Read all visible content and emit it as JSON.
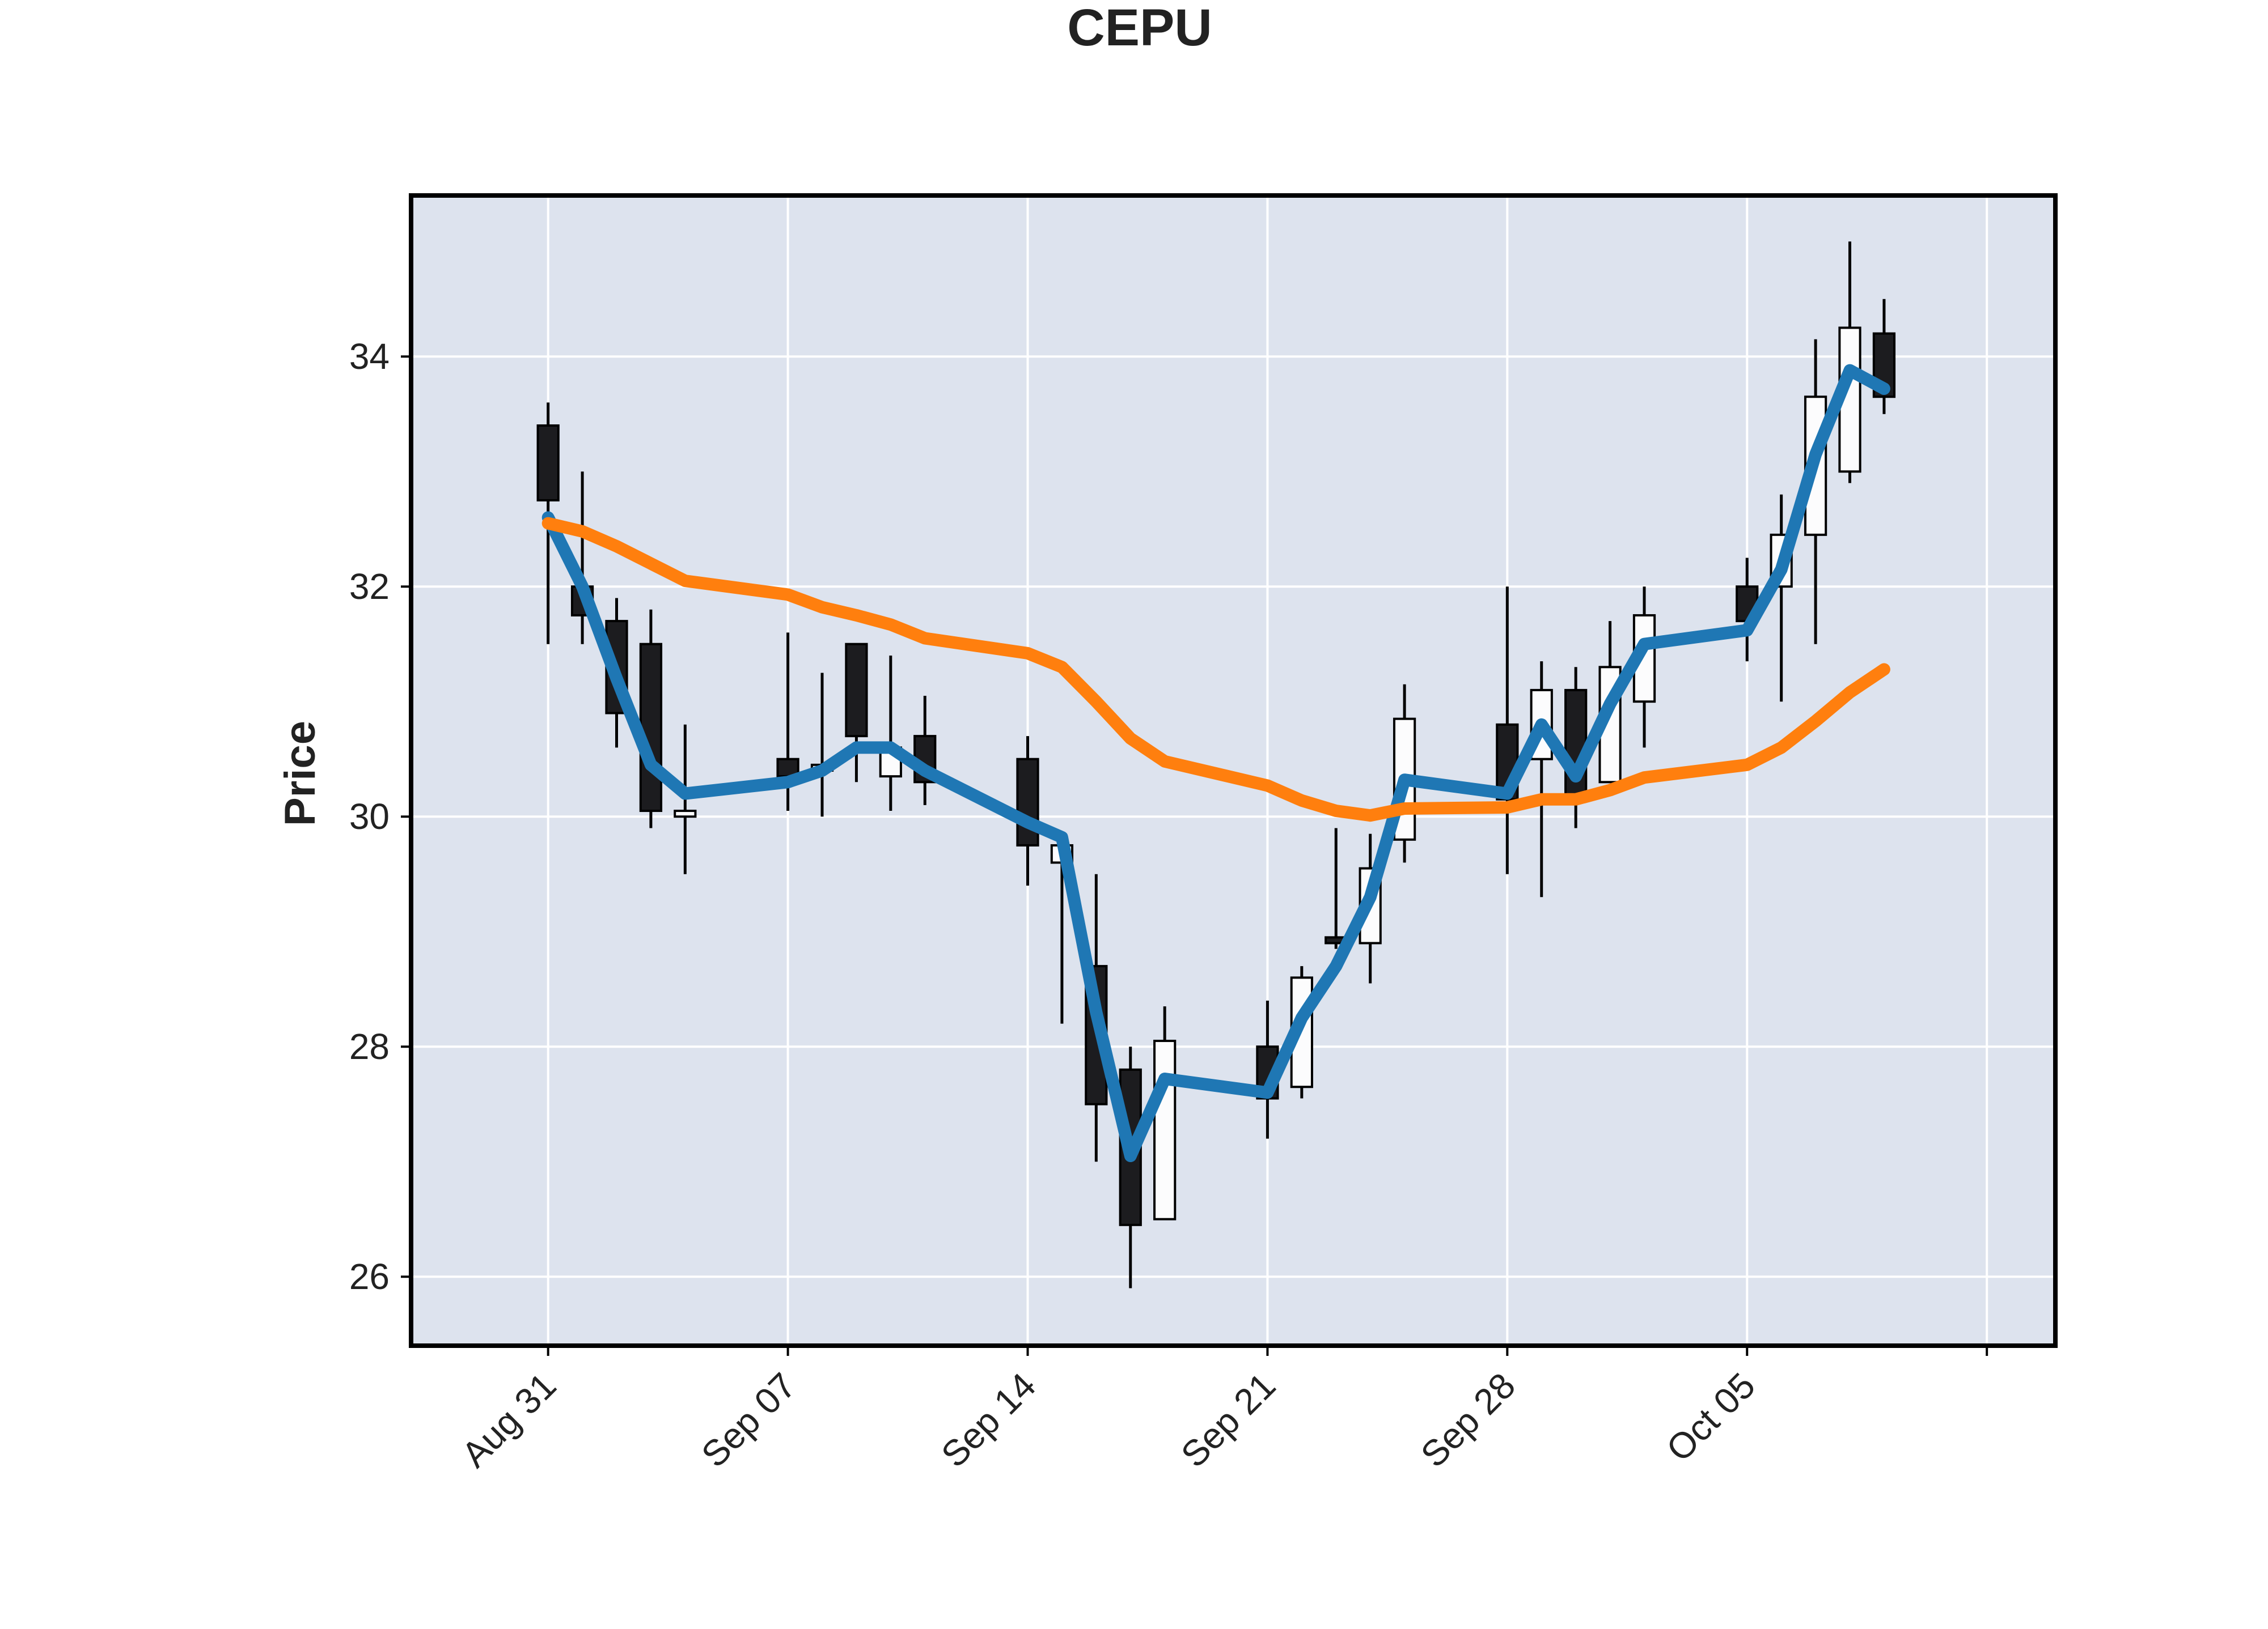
{
  "chart_data": {
    "type": "candlestick",
    "title": "CEPU",
    "xlabel": "",
    "ylabel": "Price",
    "ylim": [
      25.4,
      35.4
    ],
    "yticks": [
      26,
      28,
      30,
      32,
      34
    ],
    "ytick_labels": [
      "26",
      "28",
      "30",
      "32",
      "34"
    ],
    "xticks": [
      {
        "date": "2020-08-31",
        "label": "Aug 31"
      },
      {
        "date": "2020-09-07",
        "label": "Sep 07"
      },
      {
        "date": "2020-09-14",
        "label": "Sep 14"
      },
      {
        "date": "2020-09-21",
        "label": "Sep 21"
      },
      {
        "date": "2020-09-28",
        "label": "Sep 28"
      },
      {
        "date": "2020-10-05",
        "label": "Oct 05"
      },
      {
        "date": "2020-10-12",
        "label": ""
      }
    ],
    "xlim": [
      "2020-08-27",
      "2020-10-14"
    ],
    "grid": true,
    "legend": "none",
    "colors": {
      "plot_background": "#dde3ee",
      "grid": "#ffffff",
      "frame": "#000000",
      "up_candle": "#fcfcfd",
      "down_candle": "#1c1c1f",
      "wick": "#000000",
      "line_fast": "#1f77b4",
      "line_slow": "#ff7f0e"
    },
    "candles": [
      {
        "date": "2020-08-31",
        "open": 33.4,
        "high": 33.6,
        "low": 31.5,
        "close": 32.75
      },
      {
        "date": "2020-09-01",
        "open": 32.0,
        "high": 33.0,
        "low": 31.5,
        "close": 31.75
      },
      {
        "date": "2020-09-02",
        "open": 31.7,
        "high": 31.9,
        "low": 30.6,
        "close": 30.9
      },
      {
        "date": "2020-09-03",
        "open": 31.5,
        "high": 31.8,
        "low": 29.9,
        "close": 30.05
      },
      {
        "date": "2020-09-04",
        "open": 30.0,
        "high": 30.8,
        "low": 29.5,
        "close": 30.05
      },
      {
        "date": "2020-09-07",
        "open": 30.5,
        "high": 31.6,
        "low": 30.05,
        "close": 30.35
      },
      {
        "date": "2020-09-08",
        "open": 30.4,
        "high": 31.25,
        "low": 30.0,
        "close": 30.45
      },
      {
        "date": "2020-09-09",
        "open": 31.5,
        "high": 31.5,
        "low": 30.3,
        "close": 30.7
      },
      {
        "date": "2020-09-10",
        "open": 30.35,
        "high": 31.4,
        "low": 30.05,
        "close": 30.6
      },
      {
        "date": "2020-09-11",
        "open": 30.7,
        "high": 31.05,
        "low": 30.1,
        "close": 30.3
      },
      {
        "date": "2020-09-14",
        "open": 30.5,
        "high": 30.7,
        "low": 29.4,
        "close": 29.75
      },
      {
        "date": "2020-09-15",
        "open": 29.6,
        "high": 29.8,
        "low": 28.2,
        "close": 29.75
      },
      {
        "date": "2020-09-16",
        "open": 28.7,
        "high": 29.5,
        "low": 27.0,
        "close": 27.5
      },
      {
        "date": "2020-09-17",
        "open": 27.8,
        "high": 28.0,
        "low": 25.9,
        "close": 26.45
      },
      {
        "date": "2020-09-18",
        "open": 26.5,
        "high": 28.35,
        "low": 26.5,
        "close": 28.05
      },
      {
        "date": "2020-09-21",
        "open": 28.0,
        "high": 28.4,
        "low": 27.2,
        "close": 27.55
      },
      {
        "date": "2020-09-22",
        "open": 27.65,
        "high": 28.7,
        "low": 27.55,
        "close": 28.6
      },
      {
        "date": "2020-09-23",
        "open": 28.95,
        "high": 29.9,
        "low": 28.85,
        "close": 28.9
      },
      {
        "date": "2020-09-24",
        "open": 28.9,
        "high": 29.85,
        "low": 28.55,
        "close": 29.55
      },
      {
        "date": "2020-09-25",
        "open": 29.8,
        "high": 31.15,
        "low": 29.6,
        "close": 30.85
      },
      {
        "date": "2020-09-28",
        "open": 30.8,
        "high": 32.0,
        "low": 29.5,
        "close": 30.15
      },
      {
        "date": "2020-09-29",
        "open": 30.5,
        "high": 31.35,
        "low": 29.3,
        "close": 31.1
      },
      {
        "date": "2020-09-30",
        "open": 31.1,
        "high": 31.3,
        "low": 29.9,
        "close": 30.15
      },
      {
        "date": "2020-10-01",
        "open": 30.3,
        "high": 31.7,
        "low": 30.3,
        "close": 31.3
      },
      {
        "date": "2020-10-02",
        "open": 31.0,
        "high": 32.0,
        "low": 30.6,
        "close": 31.75
      },
      {
        "date": "2020-10-05",
        "open": 32.0,
        "high": 32.25,
        "low": 31.35,
        "close": 31.7
      },
      {
        "date": "2020-10-06",
        "open": 32.0,
        "high": 32.8,
        "low": 31.0,
        "close": 32.45
      },
      {
        "date": "2020-10-07",
        "open": 32.45,
        "high": 34.15,
        "low": 31.5,
        "close": 33.65
      },
      {
        "date": "2020-10-08",
        "open": 33.0,
        "high": 35.0,
        "low": 32.9,
        "close": 34.25
      },
      {
        "date": "2020-10-09",
        "open": 34.2,
        "high": 34.5,
        "low": 33.5,
        "close": 33.65
      }
    ],
    "lines": [
      {
        "color": "#1f77b4",
        "values": [
          32.6,
          32.0,
          31.2,
          30.45,
          30.2,
          30.3,
          30.4,
          30.6,
          30.6,
          30.4,
          29.95,
          29.82,
          28.3,
          27.05,
          27.72,
          27.6,
          28.25,
          28.7,
          29.3,
          30.32,
          30.2,
          30.8,
          30.35,
          30.98,
          31.5,
          31.62,
          32.15,
          33.15,
          33.88,
          33.72
        ]
      },
      {
        "color": "#ff7f0e",
        "values": [
          32.55,
          32.48,
          32.35,
          32.2,
          32.05,
          31.93,
          31.82,
          31.75,
          31.67,
          31.55,
          31.42,
          31.3,
          31.0,
          30.68,
          30.48,
          30.27,
          30.14,
          30.05,
          30.01,
          30.07,
          30.08,
          30.15,
          30.15,
          30.23,
          30.34,
          30.45,
          30.6,
          30.83,
          31.08,
          31.28
        ]
      }
    ]
  }
}
